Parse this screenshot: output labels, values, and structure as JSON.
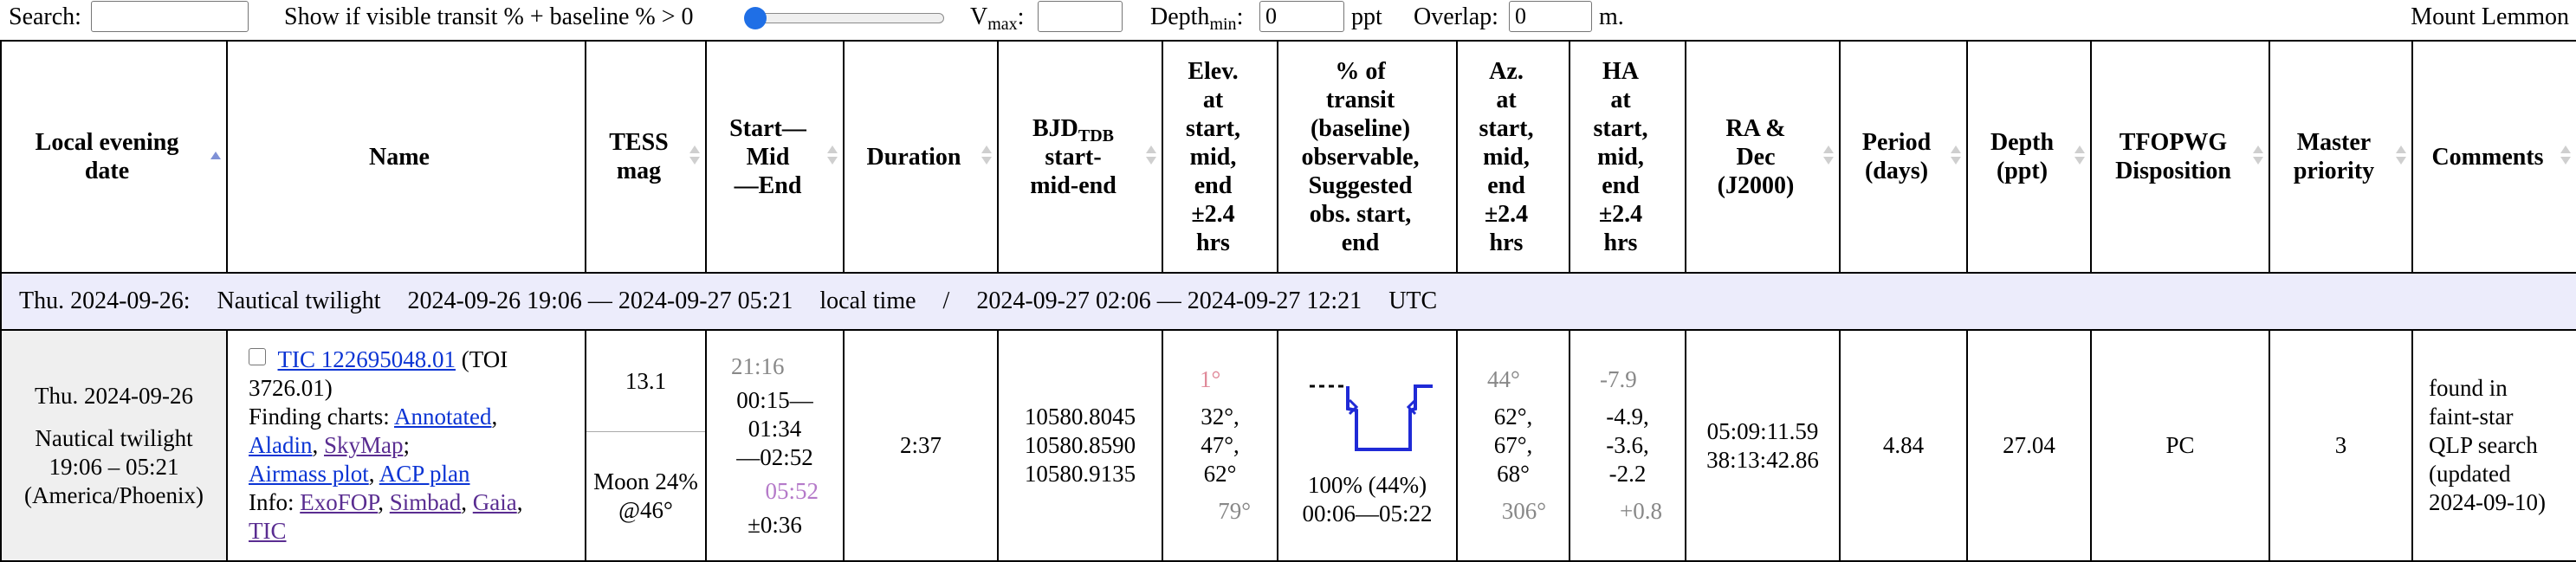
{
  "controls": {
    "search_label": "Search:",
    "search_value": "",
    "show_if_label": "Show if visible transit % + baseline % > 0",
    "slider_value_fraction": 0,
    "vmax_label": "V",
    "vmax_sub": "max",
    "vmax_colon": ":",
    "vmax_value": "",
    "depthmin_label": "Depth",
    "depthmin_sub": "min",
    "depthmin_colon": ":",
    "depthmin_value": "0",
    "depthmin_unit": "ppt",
    "overlap_label": "Overlap:",
    "overlap_value": "0",
    "overlap_unit": "m.",
    "observatory": "Mount Lemmon"
  },
  "headers": {
    "local_date": [
      "Local evening",
      "date"
    ],
    "name": [
      "Name"
    ],
    "tess_mag": [
      "TESS",
      "mag"
    ],
    "start_mid_end": [
      "Start—",
      "Mid",
      "—End"
    ],
    "duration": [
      "Duration"
    ],
    "bjd": [
      "BJD",
      "start-",
      "mid-end"
    ],
    "bjd_sub": "TDB",
    "elev": [
      "Elev.",
      "at",
      "start,",
      "mid,",
      "end",
      "±2.4",
      "hrs"
    ],
    "pct": [
      "% of",
      "transit",
      "(baseline)",
      "observable,",
      "Suggested",
      "obs. start,",
      "end"
    ],
    "az": [
      "Az.",
      "at",
      "start,",
      "mid,",
      "end",
      "±2.4",
      "hrs"
    ],
    "ha": [
      "HA",
      "at",
      "start,",
      "mid,",
      "end",
      "±2.4",
      "hrs"
    ],
    "radec": [
      "RA &",
      "Dec",
      "(J2000)"
    ],
    "period": [
      "Period",
      "(days)"
    ],
    "depth": [
      "Depth",
      "(ppt)"
    ],
    "tfopwg": [
      "TFOPWG",
      "Disposition"
    ],
    "master": [
      "Master",
      "priority"
    ],
    "comments": [
      "Comments"
    ]
  },
  "night": {
    "date": "Thu. 2024-09-26:",
    "twilight": "Nautical twilight",
    "local_range": "2024-09-26 19:06 — 2024-09-27 05:21",
    "local_label": "local time",
    "sep": "/",
    "utc_range": "2024-09-27 02:06 — 2024-09-27 12:21",
    "utc_label": "UTC"
  },
  "row": {
    "date": "Thu. 2024-09-26",
    "twilight_label": "Nautical twilight",
    "twilight_range": "19:06 – 05:21",
    "tz": "(America/Phoenix)",
    "tic_link": "TIC 122695048.01",
    "toi": " (TOI 3726.01)",
    "finding_label": "Finding charts: ",
    "link_annotated": "Annotated",
    "link_aladin": "Aladin",
    "link_skymap": "SkyMap",
    "link_airmass": "Airmass plot",
    "link_acp": "ACP plan",
    "info_label": "Info: ",
    "link_exofop": "ExoFOP",
    "link_simbad": "Simbad",
    "link_gaia": "Gaia",
    "link_tic": "TIC",
    "tess_mag": "13.1",
    "moon": "Moon 24%",
    "moon_alt": "@46°",
    "pre_time": "21:16",
    "start": "00:15—",
    "mid": "01:34",
    "end": "—02:52",
    "post_time": "05:52",
    "uncert": "±0:36",
    "duration": "2:37",
    "bjd_start": "10580.8045",
    "bjd_mid": "10580.8590",
    "bjd_end": "10580.9135",
    "elev_pre": "1°",
    "elev_start": "32°,",
    "elev_mid": "47°,",
    "elev_end": "62°",
    "elev_post": "79°",
    "pct_text": "100% (44%)",
    "obs_window": "00:06—05:22",
    "az_pre": "44°",
    "az_start": "62°,",
    "az_mid": "67°,",
    "az_end": "68°",
    "az_post": "306°",
    "ha_pre": "-7.9",
    "ha_start": "-4.9,",
    "ha_mid": "-3.6,",
    "ha_end": "-2.2",
    "ha_post": "+0.8",
    "ra": "05:09:11.59",
    "dec": "38:13:42.86",
    "period": "4.84",
    "depth": "27.04",
    "disposition": "PC",
    "priority": "3",
    "comments": [
      "found in",
      "faint-star",
      "QLP search",
      "(updated",
      "2024-09-10)"
    ]
  },
  "colors": {
    "night_bg": "#ececfb",
    "date_cell_bg": "#efefef",
    "link": "#0b34d4",
    "visited_link": "#5a2d91",
    "transit_line": "#1f2ad6",
    "slider_thumb": "#1f6fe6",
    "sort_active": "#7f91d6"
  },
  "icons": {
    "sort": "up-down-triangle-icon",
    "sort_active": "up-triangle-icon",
    "slider": "range-slider",
    "checkbox": "checkbox-icon"
  }
}
